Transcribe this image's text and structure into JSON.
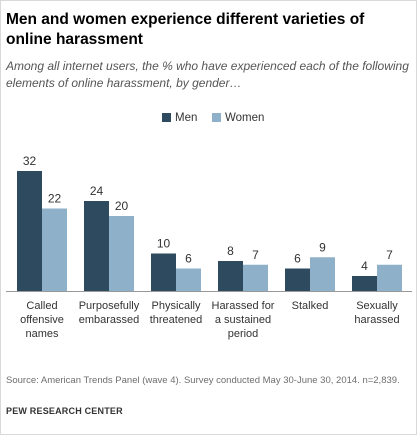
{
  "title": "Men and women experience different varieties of online harassment",
  "subtitle": "Among all internet users, the % who have experienced each of the following elements of online harassment, by gender…",
  "source": "Source: American Trends Panel (wave 4). Survey conducted May 30-June 30, 2014. n=2,839.",
  "credit": "PEW RESEARCH CENTER",
  "colors": {
    "men": "#2d4a5e",
    "women": "#8eb0c9"
  },
  "chart_data": {
    "type": "bar",
    "categories": [
      [
        "Called",
        "offensive",
        "names"
      ],
      [
        "Purposefully",
        "embarassed"
      ],
      [
        "Physically",
        "threatened"
      ],
      [
        "Harassed for",
        "a sustained",
        "period"
      ],
      [
        "Stalked"
      ],
      [
        "Sexually",
        "harassed"
      ]
    ],
    "series": [
      {
        "name": "Men",
        "values": [
          32,
          24,
          10,
          8,
          6,
          4
        ]
      },
      {
        "name": "Women",
        "values": [
          22,
          20,
          6,
          7,
          9,
          7
        ]
      }
    ],
    "ylim": [
      0,
      32
    ],
    "legend": "top-center",
    "grid": false
  }
}
